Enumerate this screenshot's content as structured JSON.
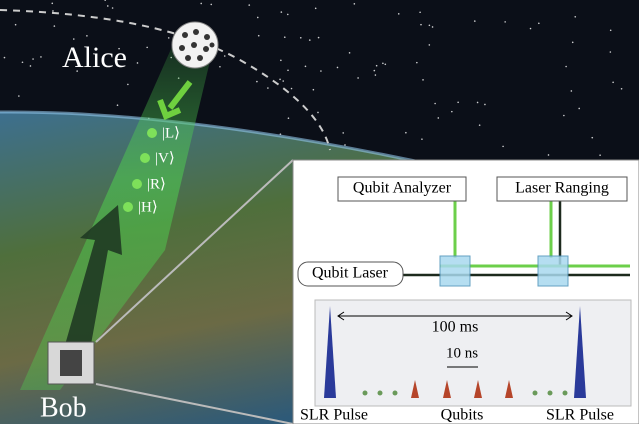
{
  "labels": {
    "alice": "Alice",
    "bob": "Bob"
  },
  "states": [
    "|L⟩",
    "|V⟩",
    "|R⟩",
    "|H⟩"
  ],
  "inset": {
    "boxes": [
      "Qubit Analyzer",
      "Laser Ranging",
      "Qubit Laser"
    ],
    "timing": {
      "period": "100 ms",
      "spacing": "10 ns",
      "labels": [
        "SLR Pulse",
        "Qubits",
        "SLR Pulse"
      ]
    }
  }
}
